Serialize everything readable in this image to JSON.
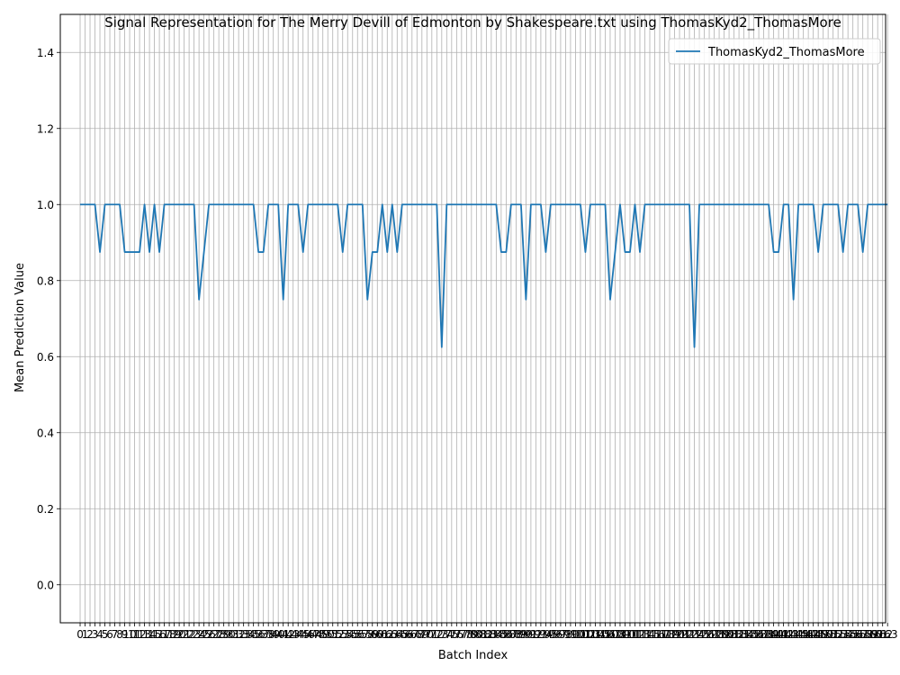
{
  "chart_data": {
    "type": "line",
    "title": "Signal Representation for The Merry Devill of Edmonton by Shakespeare.txt using ThomasKyd2_ThomasMore",
    "xlabel": "Batch Index",
    "ylabel": "Mean Prediction Value",
    "xlim": [
      -4.0,
      162.6
    ],
    "ylim": [
      -0.1,
      1.5
    ],
    "yticks": [
      0.0,
      0.2,
      0.4,
      0.6,
      0.8,
      1.0,
      1.2,
      1.4
    ],
    "ytick_labels": [
      "0.0",
      "0.2",
      "0.4",
      "0.6",
      "0.8",
      "1.0",
      "1.2",
      "1.4"
    ],
    "grid": true,
    "legend_position": "upper-right",
    "line_color": "#1f77b4",
    "grid_color": "#b0b0b0",
    "series": [
      {
        "name": "ThomasKyd2_ThomasMore",
        "values": [
          1,
          1,
          1,
          1,
          0.875,
          1,
          1,
          1,
          1,
          0.875,
          0.875,
          0.875,
          0.875,
          1,
          0.875,
          1,
          0.875,
          1,
          1,
          1,
          1,
          1,
          1,
          1,
          0.75,
          0.875,
          1,
          1,
          1,
          1,
          1,
          1,
          1,
          1,
          1,
          1,
          0.875,
          0.875,
          1,
          1,
          1,
          0.75,
          1,
          1,
          1,
          0.875,
          1,
          1,
          1,
          1,
          1,
          1,
          1,
          0.875,
          1,
          1,
          1,
          1,
          0.75,
          0.875,
          0.875,
          1,
          0.875,
          1,
          0.875,
          1,
          1,
          1,
          1,
          1,
          1,
          1,
          1,
          0.625,
          1,
          1,
          1,
          1,
          1,
          1,
          1,
          1,
          1,
          1,
          1,
          0.875,
          0.875,
          1,
          1,
          1,
          0.75,
          1,
          1,
          1,
          0.875,
          1,
          1,
          1,
          1,
          1,
          1,
          1,
          0.875,
          1,
          1,
          1,
          1,
          0.75,
          0.875,
          1,
          0.875,
          0.875,
          1,
          0.875,
          1,
          1,
          1,
          1,
          1,
          1,
          1,
          1,
          1,
          1,
          0.625,
          1,
          1,
          1,
          1,
          1,
          1,
          1,
          1,
          1,
          1,
          1,
          1,
          1,
          1,
          1,
          0.875,
          0.875,
          1,
          1,
          0.75,
          1,
          1,
          1,
          1,
          0.875,
          1,
          1,
          1,
          1,
          0.875,
          1,
          1,
          1,
          0.875,
          1,
          1,
          1,
          1,
          1
        ]
      }
    ]
  }
}
